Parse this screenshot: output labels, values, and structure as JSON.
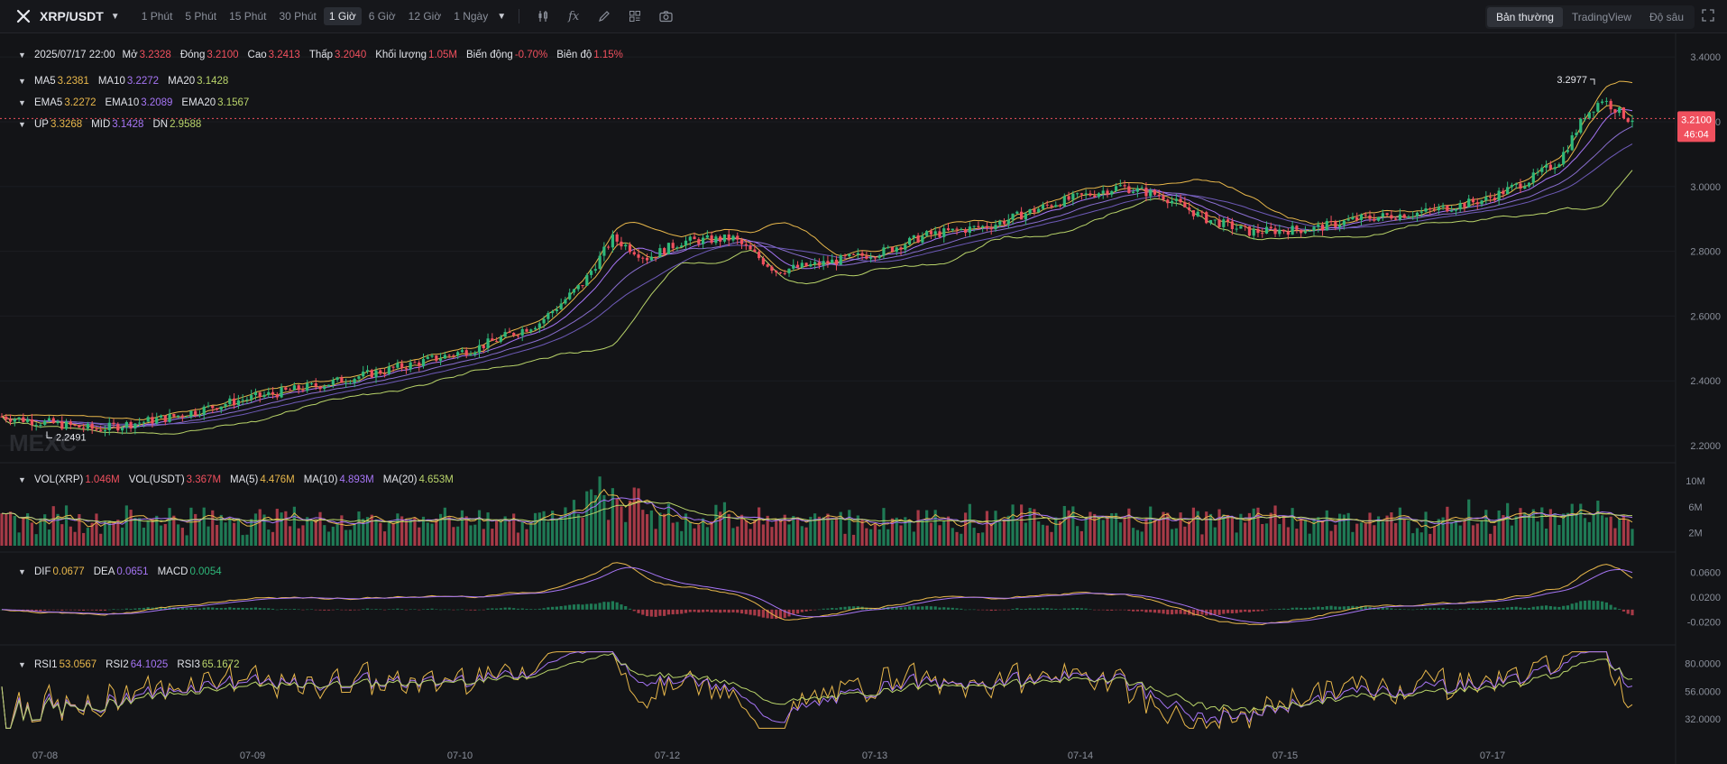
{
  "toolbar": {
    "pair": "XRP/USDT",
    "timeframes": [
      "1 Phút",
      "5 Phút",
      "15 Phút",
      "30 Phút",
      "1 Giờ",
      "6 Giờ",
      "12 Giờ",
      "1 Ngày"
    ],
    "active_timeframe": "1 Giờ",
    "views": [
      "Bản thường",
      "TradingView",
      "Độ sâu"
    ],
    "active_view": "Bản thường",
    "icons": [
      "chart-type-icon",
      "indicator-icon",
      "draw-icon",
      "layout-icon",
      "camera-icon"
    ]
  },
  "ohlc": {
    "date": "2025/07/17 22:00",
    "open_label": "Mở",
    "open": "3.2328",
    "close_label": "Đóng",
    "close": "3.2100",
    "high_label": "Cao",
    "high": "3.2413",
    "low_label": "Thấp",
    "low": "3.2040",
    "vol_label": "Khối lượng",
    "vol": "1.05M",
    "change_label": "Biến động",
    "change": "-0.70%",
    "amp_label": "Biên độ",
    "amp": "1.15%"
  },
  "ma": {
    "ma5_label": "MA5",
    "ma5": "3.2381",
    "ma10_label": "MA10",
    "ma10": "3.2272",
    "ma20_label": "MA20",
    "ma20": "3.1428"
  },
  "ema": {
    "ema5_label": "EMA5",
    "ema5": "3.2272",
    "ema10_label": "EMA10",
    "ema10": "3.2089",
    "ema20_label": "EMA20",
    "ema20": "3.1567"
  },
  "boll": {
    "up_label": "UP",
    "up": "3.3268",
    "mid_label": "MID",
    "mid": "3.1428",
    "dn_label": "DN",
    "dn": "2.9588"
  },
  "vol": {
    "xrp_label": "VOL(XRP)",
    "xrp": "1.046M",
    "usdt_label": "VOL(USDT)",
    "usdt": "3.367M",
    "ma5_label": "MA(5)",
    "ma5": "4.476M",
    "ma10_label": "MA(10)",
    "ma10": "4.893M",
    "ma20_label": "MA(20)",
    "ma20": "4.653M"
  },
  "macd": {
    "dif_label": "DIF",
    "dif": "0.0677",
    "dea_label": "DEA",
    "dea": "0.0651",
    "macd_label": "MACD",
    "macd": "0.0054"
  },
  "rsi": {
    "rsi1_label": "RSI1",
    "rsi1": "53.0567",
    "rsi2_label": "RSI2",
    "rsi2": "64.1025",
    "rsi3_label": "RSI3",
    "rsi3": "65.1672"
  },
  "watermark": "MEXC",
  "chart_data": {
    "type": "candlestick",
    "x_tick_labels": [
      "07-08",
      "07-09",
      "07-10",
      "07-12",
      "07-13",
      "07-14",
      "07-15",
      "07-17"
    ],
    "price_axis": {
      "ticks": [
        "3.4000",
        "3.2000",
        "3.0000",
        "2.8000",
        "2.6000",
        "2.4000",
        "2.2000"
      ],
      "range": [
        2.15,
        3.47
      ]
    },
    "current_price": "3.2100",
    "countdown": "46:04",
    "max_label": "3.2977",
    "min_label": "2.2491",
    "price_path": [
      [
        0,
        2.29
      ],
      [
        22,
        2.25
      ],
      [
        40,
        2.29
      ],
      [
        55,
        2.34
      ],
      [
        75,
        2.39
      ],
      [
        95,
        2.45
      ],
      [
        110,
        2.5
      ],
      [
        125,
        2.58
      ],
      [
        135,
        2.7
      ],
      [
        142,
        2.84
      ],
      [
        150,
        2.78
      ],
      [
        158,
        2.83
      ],
      [
        170,
        2.84
      ],
      [
        175,
        2.79
      ],
      [
        180,
        2.74
      ],
      [
        190,
        2.76
      ],
      [
        205,
        2.8
      ],
      [
        215,
        2.85
      ],
      [
        230,
        2.88
      ],
      [
        245,
        2.95
      ],
      [
        260,
        3.0
      ],
      [
        270,
        2.97
      ],
      [
        280,
        2.9
      ],
      [
        290,
        2.86
      ],
      [
        305,
        2.87
      ],
      [
        315,
        2.9
      ],
      [
        330,
        2.92
      ],
      [
        345,
        2.96
      ],
      [
        355,
        3.02
      ],
      [
        362,
        3.08
      ],
      [
        368,
        3.22
      ],
      [
        372,
        3.27
      ],
      [
        378,
        3.21
      ]
    ],
    "candle_count": 380,
    "volume_axis": {
      "ticks": [
        "10M",
        "6M",
        "2M"
      ],
      "range": [
        0,
        12.5
      ]
    },
    "macd_axis": {
      "ticks": [
        "0.0600",
        "0.0200",
        "-0.0200"
      ],
      "range": [
        -0.045,
        0.085
      ]
    },
    "rsi_axis": {
      "ticks": [
        "80.0000",
        "56.0000",
        "32.0000"
      ],
      "range": [
        22,
        92
      ]
    },
    "colors": {
      "up": "#2eb87a",
      "down": "#f0505e",
      "ma5": "#e8b74b",
      "ma10": "#a675f5",
      "ma20": "#b9d46a",
      "bg": "#131417"
    }
  }
}
